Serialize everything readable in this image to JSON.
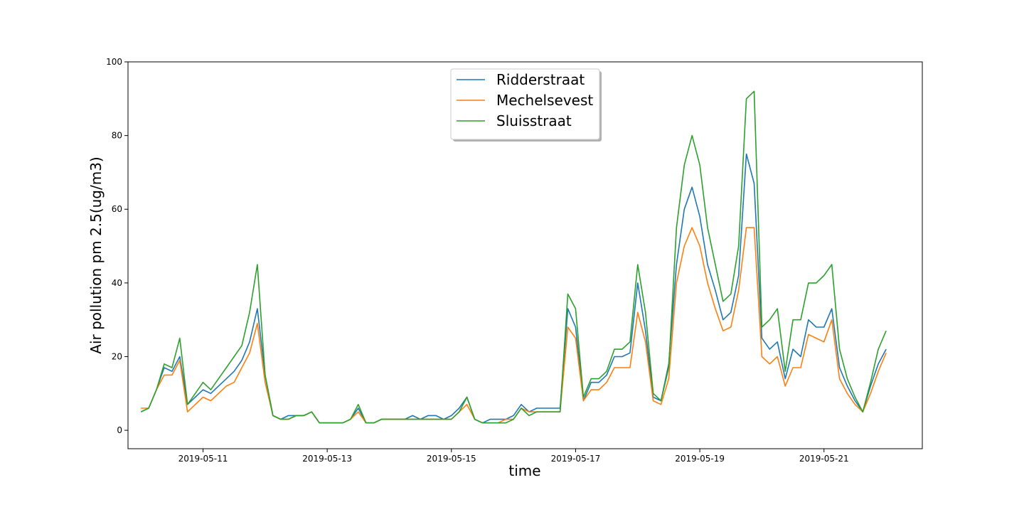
{
  "chart_data": {
    "type": "line",
    "title": "",
    "xlabel": "time",
    "ylabel": "Air pollution pm 2.5(ug/m3)",
    "xlim": [
      "2019-05-09T19:00",
      "2019-05-22T14:00"
    ],
    "ylim": [
      -5,
      100
    ],
    "xticks": [
      "2019-05-11",
      "2019-05-13",
      "2019-05-15",
      "2019-05-17",
      "2019-05-19",
      "2019-05-21"
    ],
    "yticks": [
      0,
      20,
      40,
      60,
      80,
      100
    ],
    "grid": false,
    "legend": {
      "placement": "upper center"
    },
    "x": [
      "2019-05-10T00:00",
      "2019-05-10T03:00",
      "2019-05-10T06:00",
      "2019-05-10T09:00",
      "2019-05-10T12:00",
      "2019-05-10T15:00",
      "2019-05-10T18:00",
      "2019-05-10T21:00",
      "2019-05-11T00:00",
      "2019-05-11T03:00",
      "2019-05-11T06:00",
      "2019-05-11T09:00",
      "2019-05-11T12:00",
      "2019-05-11T15:00",
      "2019-05-11T18:00",
      "2019-05-11T21:00",
      "2019-05-12T00:00",
      "2019-05-12T03:00",
      "2019-05-12T06:00",
      "2019-05-12T09:00",
      "2019-05-12T12:00",
      "2019-05-12T15:00",
      "2019-05-12T18:00",
      "2019-05-12T21:00",
      "2019-05-13T00:00",
      "2019-05-13T03:00",
      "2019-05-13T06:00",
      "2019-05-13T09:00",
      "2019-05-13T12:00",
      "2019-05-13T15:00",
      "2019-05-13T18:00",
      "2019-05-13T21:00",
      "2019-05-14T00:00",
      "2019-05-14T03:00",
      "2019-05-14T06:00",
      "2019-05-14T09:00",
      "2019-05-14T12:00",
      "2019-05-14T15:00",
      "2019-05-14T18:00",
      "2019-05-14T21:00",
      "2019-05-15T00:00",
      "2019-05-15T03:00",
      "2019-05-15T06:00",
      "2019-05-15T09:00",
      "2019-05-15T12:00",
      "2019-05-15T15:00",
      "2019-05-15T18:00",
      "2019-05-15T21:00",
      "2019-05-16T00:00",
      "2019-05-16T03:00",
      "2019-05-16T06:00",
      "2019-05-16T09:00",
      "2019-05-16T12:00",
      "2019-05-16T15:00",
      "2019-05-16T18:00",
      "2019-05-16T21:00",
      "2019-05-17T00:00",
      "2019-05-17T03:00",
      "2019-05-17T06:00",
      "2019-05-17T09:00",
      "2019-05-17T12:00",
      "2019-05-17T15:00",
      "2019-05-17T18:00",
      "2019-05-17T21:00",
      "2019-05-18T00:00",
      "2019-05-18T03:00",
      "2019-05-18T06:00",
      "2019-05-18T09:00",
      "2019-05-18T12:00",
      "2019-05-18T15:00",
      "2019-05-18T18:00",
      "2019-05-18T21:00",
      "2019-05-19T00:00",
      "2019-05-19T03:00",
      "2019-05-19T06:00",
      "2019-05-19T09:00",
      "2019-05-19T12:00",
      "2019-05-19T15:00",
      "2019-05-19T18:00",
      "2019-05-19T21:00",
      "2019-05-20T00:00",
      "2019-05-20T03:00",
      "2019-05-20T06:00",
      "2019-05-20T09:00",
      "2019-05-20T12:00",
      "2019-05-20T15:00",
      "2019-05-20T18:00",
      "2019-05-20T21:00",
      "2019-05-21T00:00",
      "2019-05-21T03:00",
      "2019-05-21T06:00",
      "2019-05-21T09:00",
      "2019-05-21T12:00",
      "2019-05-21T15:00",
      "2019-05-21T18:00",
      "2019-05-21T21:00",
      "2019-05-22T00:00"
    ],
    "series": [
      {
        "name": "Ridderstraat",
        "color": "#1f77b4",
        "values": [
          5,
          6,
          11,
          17,
          16,
          20,
          7,
          9,
          11,
          10,
          12,
          14,
          16,
          19,
          24,
          33,
          15,
          4,
          3,
          4,
          4,
          4,
          5,
          2,
          2,
          2,
          2,
          3,
          6,
          2,
          2,
          3,
          3,
          3,
          3,
          4,
          3,
          4,
          4,
          3,
          4,
          6,
          9,
          3,
          2,
          3,
          3,
          3,
          4,
          7,
          5,
          6,
          6,
          6,
          6,
          33,
          28,
          8,
          13,
          13,
          15,
          20,
          20,
          21,
          40,
          27,
          9,
          8,
          18,
          45,
          60,
          66,
          58,
          45,
          38,
          30,
          32,
          42,
          75,
          67,
          25,
          22,
          24,
          14,
          22,
          20,
          30,
          28,
          28,
          33,
          17,
          12,
          8,
          5,
          12,
          18,
          22
        ]
      },
      {
        "name": "Mechelsevest",
        "color": "#ff7f0e",
        "values": [
          6,
          6,
          11,
          15,
          15,
          19,
          5,
          7,
          9,
          8,
          10,
          12,
          13,
          17,
          21,
          29,
          13,
          4,
          3,
          3,
          4,
          4,
          5,
          2,
          2,
          2,
          2,
          3,
          5,
          2,
          2,
          3,
          3,
          3,
          3,
          3,
          3,
          3,
          3,
          3,
          3,
          5,
          7,
          3,
          2,
          2,
          2,
          3,
          3,
          6,
          5,
          5,
          5,
          5,
          5,
          28,
          25,
          8,
          11,
          11,
          13,
          17,
          17,
          17,
          32,
          24,
          8,
          7,
          14,
          40,
          50,
          55,
          50,
          40,
          33,
          27,
          28,
          38,
          55,
          55,
          20,
          18,
          20,
          12,
          17,
          17,
          26,
          25,
          24,
          30,
          14,
          10,
          7,
          5,
          10,
          16,
          21
        ]
      },
      {
        "name": "Sluisstraat",
        "color": "#2ca02c",
        "values": [
          5,
          6,
          11,
          18,
          17,
          25,
          7,
          10,
          13,
          11,
          14,
          17,
          20,
          23,
          32,
          45,
          15,
          4,
          3,
          3,
          4,
          4,
          5,
          2,
          2,
          2,
          2,
          3,
          7,
          2,
          2,
          3,
          3,
          3,
          3,
          3,
          3,
          3,
          3,
          3,
          3,
          5,
          9,
          3,
          2,
          2,
          2,
          2,
          3,
          6,
          4,
          5,
          5,
          5,
          5,
          37,
          33,
          9,
          14,
          14,
          16,
          22,
          22,
          24,
          45,
          32,
          10,
          8,
          17,
          55,
          72,
          80,
          72,
          55,
          45,
          35,
          37,
          50,
          90,
          92,
          28,
          30,
          33,
          16,
          30,
          30,
          40,
          40,
          42,
          45,
          22,
          14,
          9,
          5,
          13,
          22,
          27
        ]
      }
    ]
  }
}
